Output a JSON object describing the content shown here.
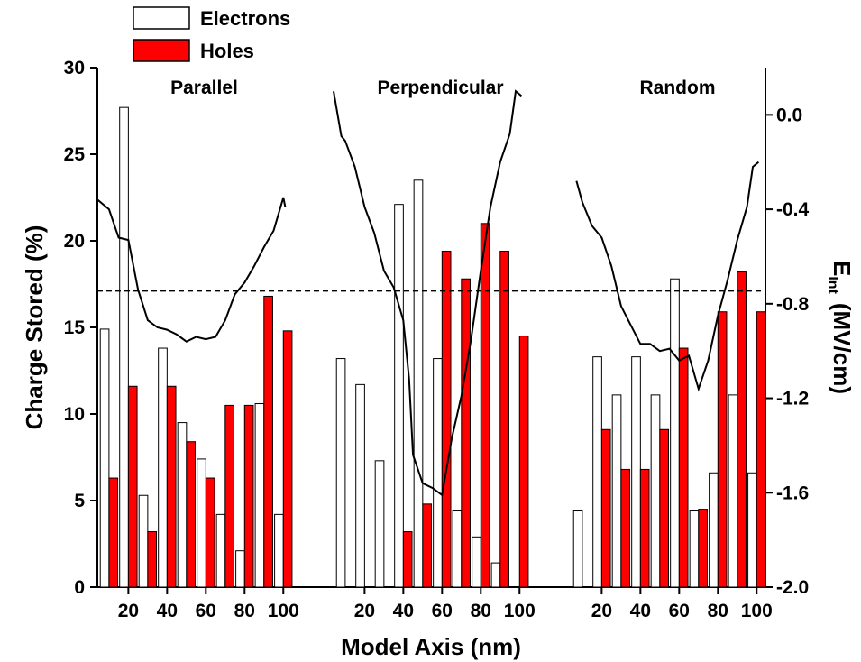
{
  "chart_data": {
    "type": "bar",
    "x_label": "Model Axis (nm)",
    "y_label": "Charge Stored (%)",
    "y2_label": {
      "main": "E",
      "sub": "Int",
      "unit": "(MV/cm)"
    },
    "ylim": [
      0,
      30
    ],
    "yticks": [
      0,
      5,
      10,
      15,
      20,
      25,
      30
    ],
    "y2lim": [
      -2.0,
      0.2
    ],
    "y2ticks": [
      {
        "value": -2.0,
        "label": "-2.0"
      },
      {
        "value": -1.6,
        "label": "-1.6"
      },
      {
        "value": -1.2,
        "label": "-1.2"
      },
      {
        "value": -0.8,
        "label": "-0.8"
      },
      {
        "value": -0.4,
        "label": "-0.4"
      },
      {
        "value": 0.0,
        "label": "0.0"
      }
    ],
    "series": [
      {
        "name": "Electrons",
        "color": "#ffffff"
      },
      {
        "name": "Holes",
        "color": "#ff0000"
      }
    ],
    "reference_line": {
      "value": 17.1,
      "style": "dashed"
    },
    "panels": [
      {
        "title": "Parallel",
        "xlim": [
          4,
          105
        ],
        "xticks": [
          20,
          40,
          60,
          80,
          100
        ],
        "x": [
          10,
          20,
          30,
          40,
          50,
          60,
          70,
          80,
          90,
          100
        ],
        "values": [
          [
            14.9,
            27.7,
            5.3,
            13.8,
            9.5,
            7.4,
            4.2,
            2.1,
            10.6,
            4.2
          ],
          [
            6.3,
            11.6,
            3.2,
            11.6,
            8.4,
            6.3,
            10.5,
            10.5,
            16.8,
            14.8
          ]
        ],
        "field": {
          "axis": "y2",
          "color": "#000000",
          "x": [
            4.2,
            10,
            15,
            20,
            25,
            30,
            35,
            40,
            45,
            50,
            55,
            60,
            65,
            70,
            75,
            80,
            85,
            90,
            95,
            100,
            101
          ],
          "values": [
            -0.36,
            -0.4,
            -0.52,
            -0.53,
            -0.74,
            -0.87,
            -0.9,
            -0.91,
            -0.93,
            -0.96,
            -0.94,
            -0.95,
            -0.94,
            -0.87,
            -0.76,
            -0.71,
            -0.64,
            -0.56,
            -0.49,
            -0.35,
            -0.39
          ]
        }
      },
      {
        "title": "Perpendicular",
        "xlim": [
          4,
          105
        ],
        "xticks": [
          20,
          40,
          60,
          80,
          100
        ],
        "x": [
          10,
          20,
          30,
          40,
          50,
          60,
          70,
          80,
          90,
          100
        ],
        "values": [
          [
            13.2,
            11.7,
            7.3,
            22.1,
            23.5,
            13.2,
            4.4,
            2.9,
            1.4,
            0
          ],
          [
            0,
            0,
            0,
            3.2,
            4.8,
            19.4,
            17.8,
            21.0,
            19.4,
            14.5
          ]
        ],
        "field": {
          "axis": "y2",
          "color": "#000000",
          "x": [
            4,
            8,
            10,
            15,
            20,
            25,
            30,
            35,
            40,
            43,
            45,
            50,
            55,
            60,
            65,
            70,
            75,
            80,
            85,
            90,
            95,
            98,
            101
          ],
          "values": [
            0.1,
            -0.09,
            -0.11,
            -0.22,
            -0.39,
            -0.5,
            -0.66,
            -0.73,
            -0.87,
            -1.12,
            -1.44,
            -1.56,
            -1.58,
            -1.61,
            -1.37,
            -1.19,
            -0.95,
            -0.66,
            -0.39,
            -0.2,
            -0.08,
            0.1,
            0.08
          ]
        }
      },
      {
        "title": "Random",
        "xlim": [
          4,
          105
        ],
        "xticks": [
          20,
          40,
          60,
          80,
          100
        ],
        "x": [
          10,
          20,
          30,
          40,
          50,
          60,
          70,
          80,
          90,
          100
        ],
        "values": [
          [
            4.4,
            13.3,
            11.1,
            13.3,
            11.1,
            17.8,
            4.4,
            6.6,
            11.1,
            6.6
          ],
          [
            0,
            9.1,
            6.8,
            6.8,
            9.1,
            13.8,
            4.5,
            15.9,
            18.2,
            15.9
          ]
        ],
        "field": {
          "axis": "y2",
          "color": "#000000",
          "x": [
            7,
            10,
            15,
            20,
            25,
            30,
            35,
            40,
            45,
            50,
            55,
            60,
            65,
            70,
            75,
            80,
            85,
            90,
            95,
            98,
            101
          ],
          "values": [
            -0.28,
            -0.37,
            -0.47,
            -0.52,
            -0.64,
            -0.81,
            -0.89,
            -0.97,
            -0.97,
            -1.0,
            -0.99,
            -1.04,
            -1.02,
            -1.16,
            -1.04,
            -0.85,
            -0.7,
            -0.53,
            -0.39,
            -0.22,
            -0.2
          ]
        }
      }
    ]
  }
}
